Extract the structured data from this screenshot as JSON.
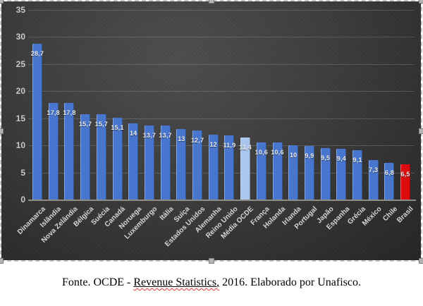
{
  "chart_data": {
    "type": "bar",
    "title": "",
    "xlabel": "",
    "ylabel": "",
    "categories": [
      "Dinamarca",
      "Islândia",
      "Nova Zelândia",
      "Bélgica",
      "Suécia",
      "Canadá",
      "Noruega",
      "Luxemburgo",
      "Itália",
      "Suíça",
      "Estados Unidos",
      "Alemanha",
      "Reino Unido",
      "Média OCDE",
      "França",
      "Holanda",
      "Irlanda",
      "Portugal",
      "Japão",
      "Espanha",
      "Grécia",
      "México",
      "Chile",
      "Brasil"
    ],
    "values": [
      28.7,
      17.8,
      17.8,
      15.7,
      15.7,
      15.1,
      14,
      13.7,
      13.7,
      13,
      12.7,
      12,
      11.9,
      11.4,
      10.6,
      10.6,
      10,
      9.9,
      9.5,
      9.4,
      9.1,
      7.3,
      6.8,
      6.5
    ],
    "value_labels": [
      "28,7",
      "17,8",
      "17,8",
      "15,7",
      "15,7",
      "15,1",
      "14",
      "13,7",
      "13,7",
      "13",
      "12,7",
      "12",
      "11,9",
      "11,4",
      "10,6",
      "10,6",
      "10",
      "9,9",
      "9,5",
      "9,4",
      "9,1",
      "7,3",
      "6,8",
      "6,5"
    ],
    "average_index": 13,
    "highlight_index": 23,
    "ylim": [
      0,
      35
    ],
    "yticks": [
      0,
      5,
      10,
      15,
      20,
      25,
      30,
      35
    ],
    "grid": true,
    "legend": "none",
    "colors": {
      "bar_default": "#4876CE",
      "bar_average": "#AAC6EE",
      "bar_highlight": "#DD0A0E",
      "gridline": "rgba(255,255,255,0.16)",
      "axis_line": "#8e8e86",
      "tick_text": "#c9c9c9",
      "value_text": "#ececec",
      "category_text": "#d6d6d6"
    }
  },
  "caption": {
    "prefix": "Fonte. OCDE - ",
    "underlined": "Revenue Statistics,",
    "suffix": " 2016. Elaborado por Unafisco."
  }
}
